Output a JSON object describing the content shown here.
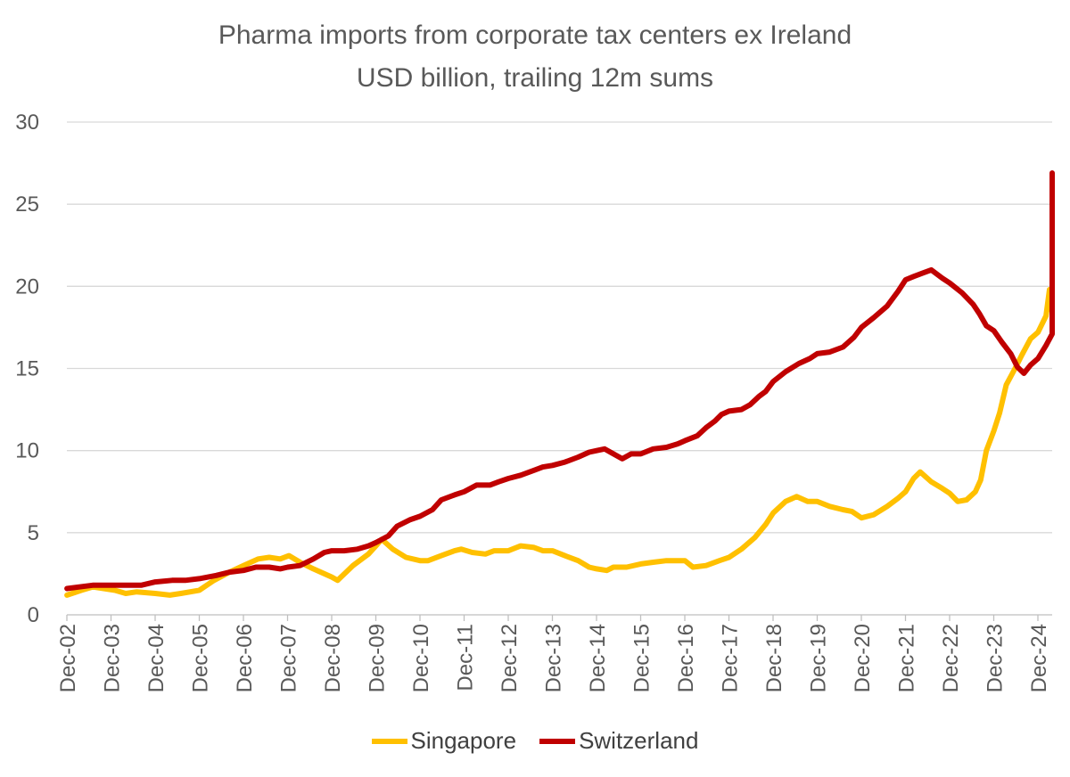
{
  "chart_data": {
    "type": "line",
    "title": "Pharma imports from corporate tax centers ex Ireland",
    "subtitle": "USD billion, trailing 12m sums",
    "xlabel": "",
    "ylabel": "",
    "ylim": [
      0,
      30
    ],
    "yticks": [
      "0",
      "5",
      "10",
      "15",
      "20",
      "25",
      "30"
    ],
    "xlim": [
      2002.917,
      2025.42
    ],
    "xticks": [
      "Dec-02",
      "Dec-03",
      "Dec-04",
      "Dec-05",
      "Dec-06",
      "Dec-07",
      "Dec-08",
      "Dec-09",
      "Dec-10",
      "Dec-11",
      "Dec-12",
      "Dec-13",
      "Dec-14",
      "Dec-15",
      "Dec-16",
      "Dec-17",
      "Dec-18",
      "Dec-19",
      "Dec-20",
      "Dec-21",
      "Dec-22",
      "Dec-23",
      "Dec-24"
    ],
    "grid": true,
    "legend_position": "bottom",
    "series": [
      {
        "name": "Singapore",
        "color": "#FFC000",
        "points": [
          [
            2002.92,
            1.2
          ],
          [
            2003.25,
            1.5
          ],
          [
            2003.5,
            1.7
          ],
          [
            2003.75,
            1.6
          ],
          [
            2004.0,
            1.5
          ],
          [
            2004.25,
            1.3
          ],
          [
            2004.5,
            1.4
          ],
          [
            2004.92,
            1.3
          ],
          [
            2005.25,
            1.2
          ],
          [
            2005.5,
            1.3
          ],
          [
            2005.92,
            1.5
          ],
          [
            2006.25,
            2.1
          ],
          [
            2006.6,
            2.6
          ],
          [
            2006.92,
            3.0
          ],
          [
            2007.25,
            3.4
          ],
          [
            2007.5,
            3.5
          ],
          [
            2007.75,
            3.4
          ],
          [
            2007.95,
            3.6
          ],
          [
            2008.2,
            3.2
          ],
          [
            2008.5,
            2.8
          ],
          [
            2008.92,
            2.3
          ],
          [
            2009.05,
            2.1
          ],
          [
            2009.4,
            3.0
          ],
          [
            2009.75,
            3.7
          ],
          [
            2009.92,
            4.2
          ],
          [
            2010.05,
            4.6
          ],
          [
            2010.3,
            4.0
          ],
          [
            2010.6,
            3.5
          ],
          [
            2010.92,
            3.3
          ],
          [
            2011.1,
            3.3
          ],
          [
            2011.4,
            3.6
          ],
          [
            2011.7,
            3.9
          ],
          [
            2011.85,
            4.0
          ],
          [
            2012.1,
            3.8
          ],
          [
            2012.4,
            3.7
          ],
          [
            2012.6,
            3.9
          ],
          [
            2012.92,
            3.9
          ],
          [
            2013.2,
            4.2
          ],
          [
            2013.5,
            4.1
          ],
          [
            2013.7,
            3.9
          ],
          [
            2013.92,
            3.9
          ],
          [
            2014.2,
            3.6
          ],
          [
            2014.5,
            3.3
          ],
          [
            2014.75,
            2.9
          ],
          [
            2014.92,
            2.8
          ],
          [
            2015.15,
            2.7
          ],
          [
            2015.3,
            2.9
          ],
          [
            2015.6,
            2.9
          ],
          [
            2015.92,
            3.1
          ],
          [
            2016.2,
            3.2
          ],
          [
            2016.5,
            3.3
          ],
          [
            2016.7,
            3.3
          ],
          [
            2016.92,
            3.3
          ],
          [
            2017.1,
            2.9
          ],
          [
            2017.4,
            3.0
          ],
          [
            2017.7,
            3.3
          ],
          [
            2017.92,
            3.5
          ],
          [
            2018.2,
            4.0
          ],
          [
            2018.5,
            4.7
          ],
          [
            2018.75,
            5.5
          ],
          [
            2018.92,
            6.2
          ],
          [
            2019.2,
            6.9
          ],
          [
            2019.45,
            7.2
          ],
          [
            2019.7,
            6.9
          ],
          [
            2019.92,
            6.9
          ],
          [
            2020.2,
            6.6
          ],
          [
            2020.5,
            6.4
          ],
          [
            2020.7,
            6.3
          ],
          [
            2020.92,
            5.9
          ],
          [
            2021.2,
            6.1
          ],
          [
            2021.5,
            6.6
          ],
          [
            2021.75,
            7.1
          ],
          [
            2021.92,
            7.5
          ],
          [
            2022.1,
            8.3
          ],
          [
            2022.25,
            8.7
          ],
          [
            2022.5,
            8.1
          ],
          [
            2022.75,
            7.7
          ],
          [
            2022.92,
            7.4
          ],
          [
            2023.1,
            6.9
          ],
          [
            2023.3,
            7.0
          ],
          [
            2023.5,
            7.5
          ],
          [
            2023.62,
            8.2
          ],
          [
            2023.75,
            10.0
          ],
          [
            2023.92,
            11.2
          ],
          [
            2024.05,
            12.3
          ],
          [
            2024.2,
            14.0
          ],
          [
            2024.4,
            15.0
          ],
          [
            2024.55,
            15.8
          ],
          [
            2024.75,
            16.8
          ],
          [
            2024.92,
            17.2
          ],
          [
            2025.1,
            18.2
          ],
          [
            2025.18,
            19.8
          ],
          [
            2025.3,
            18.4
          ],
          [
            2025.5,
            18.0
          ],
          [
            2025.62,
            19.6
          ],
          [
            2025.9,
            18.9
          ],
          [
            2026.05,
            18.1
          ]
        ]
      },
      {
        "name": "Switzerland",
        "color": "#C00000",
        "points": [
          [
            2002.92,
            1.6
          ],
          [
            2003.2,
            1.7
          ],
          [
            2003.5,
            1.8
          ],
          [
            2003.92,
            1.8
          ],
          [
            2004.3,
            1.8
          ],
          [
            2004.6,
            1.8
          ],
          [
            2004.92,
            2.0
          ],
          [
            2005.3,
            2.1
          ],
          [
            2005.6,
            2.1
          ],
          [
            2005.92,
            2.2
          ],
          [
            2006.3,
            2.4
          ],
          [
            2006.6,
            2.6
          ],
          [
            2006.92,
            2.7
          ],
          [
            2007.2,
            2.9
          ],
          [
            2007.5,
            2.9
          ],
          [
            2007.75,
            2.8
          ],
          [
            2007.92,
            2.9
          ],
          [
            2008.2,
            3.0
          ],
          [
            2008.5,
            3.4
          ],
          [
            2008.75,
            3.8
          ],
          [
            2008.92,
            3.9
          ],
          [
            2009.2,
            3.9
          ],
          [
            2009.5,
            4.0
          ],
          [
            2009.75,
            4.2
          ],
          [
            2009.92,
            4.4
          ],
          [
            2010.2,
            4.8
          ],
          [
            2010.4,
            5.4
          ],
          [
            2010.7,
            5.8
          ],
          [
            2010.92,
            6.0
          ],
          [
            2011.2,
            6.4
          ],
          [
            2011.4,
            7.0
          ],
          [
            2011.7,
            7.3
          ],
          [
            2011.92,
            7.5
          ],
          [
            2012.2,
            7.9
          ],
          [
            2012.5,
            7.9
          ],
          [
            2012.7,
            8.1
          ],
          [
            2012.92,
            8.3
          ],
          [
            2013.2,
            8.5
          ],
          [
            2013.5,
            8.8
          ],
          [
            2013.7,
            9.0
          ],
          [
            2013.92,
            9.1
          ],
          [
            2014.2,
            9.3
          ],
          [
            2014.5,
            9.6
          ],
          [
            2014.75,
            9.9
          ],
          [
            2014.92,
            10.0
          ],
          [
            2015.1,
            10.1
          ],
          [
            2015.3,
            9.8
          ],
          [
            2015.5,
            9.5
          ],
          [
            2015.7,
            9.8
          ],
          [
            2015.92,
            9.8
          ],
          [
            2016.2,
            10.1
          ],
          [
            2016.5,
            10.2
          ],
          [
            2016.75,
            10.4
          ],
          [
            2016.92,
            10.6
          ],
          [
            2017.2,
            10.9
          ],
          [
            2017.4,
            11.4
          ],
          [
            2017.6,
            11.8
          ],
          [
            2017.75,
            12.2
          ],
          [
            2017.92,
            12.4
          ],
          [
            2018.2,
            12.5
          ],
          [
            2018.4,
            12.8
          ],
          [
            2018.6,
            13.3
          ],
          [
            2018.75,
            13.6
          ],
          [
            2018.92,
            14.2
          ],
          [
            2019.2,
            14.8
          ],
          [
            2019.5,
            15.3
          ],
          [
            2019.75,
            15.6
          ],
          [
            2019.92,
            15.9
          ],
          [
            2020.2,
            16.0
          ],
          [
            2020.5,
            16.3
          ],
          [
            2020.75,
            16.9
          ],
          [
            2020.92,
            17.5
          ],
          [
            2021.2,
            18.1
          ],
          [
            2021.5,
            18.8
          ],
          [
            2021.75,
            19.7
          ],
          [
            2021.92,
            20.4
          ],
          [
            2022.1,
            20.6
          ],
          [
            2022.3,
            20.8
          ],
          [
            2022.5,
            21.0
          ],
          [
            2022.75,
            20.5
          ],
          [
            2022.92,
            20.2
          ],
          [
            2023.2,
            19.6
          ],
          [
            2023.45,
            18.9
          ],
          [
            2023.6,
            18.3
          ],
          [
            2023.75,
            17.6
          ],
          [
            2023.92,
            17.3
          ],
          [
            2024.1,
            16.6
          ],
          [
            2024.3,
            15.9
          ],
          [
            2024.45,
            15.1
          ],
          [
            2024.6,
            14.7
          ],
          [
            2024.75,
            15.2
          ],
          [
            2024.92,
            15.6
          ],
          [
            2025.1,
            16.4
          ],
          [
            2025.25,
            17.1
          ],
          [
            2025.4,
            18.6
          ],
          [
            2025.5,
            21.7
          ],
          [
            2025.62,
            22.3
          ],
          [
            2025.72,
            23.0
          ],
          [
            2025.8,
            26.9
          ],
          [
            2025.95,
            26.7
          ],
          [
            2026.05,
            26.4
          ]
        ]
      }
    ]
  }
}
